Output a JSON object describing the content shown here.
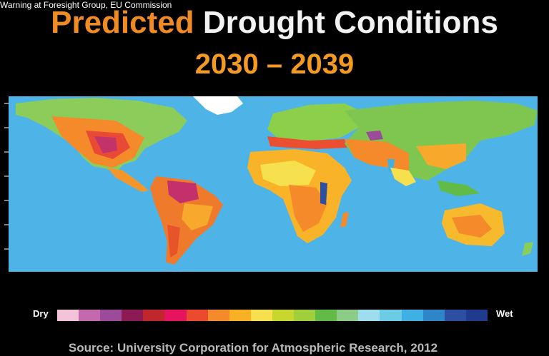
{
  "caption": "Warning at Foresight Group, EU Commission",
  "title": {
    "word1": "Predicted",
    "word2": "Drought Conditions"
  },
  "period": "2030 – 2039",
  "legend": {
    "dry_label": "Dry",
    "wet_label": "Wet",
    "colors": [
      "#f3c3d9",
      "#c469ad",
      "#9c4a9a",
      "#8c1a55",
      "#c0272d",
      "#e8135f",
      "#ec4a2e",
      "#f58a2a",
      "#f8b125",
      "#f6e04d",
      "#c8d62e",
      "#9fcf3a",
      "#62bb46",
      "#8ccc87",
      "#9fdcee",
      "#6ccbe5",
      "#3fb0e3",
      "#2e85c8",
      "#2c4fa2",
      "#1f3b8d"
    ]
  },
  "source": "Source: University Corporation for Atmospheric Research, 2012"
}
